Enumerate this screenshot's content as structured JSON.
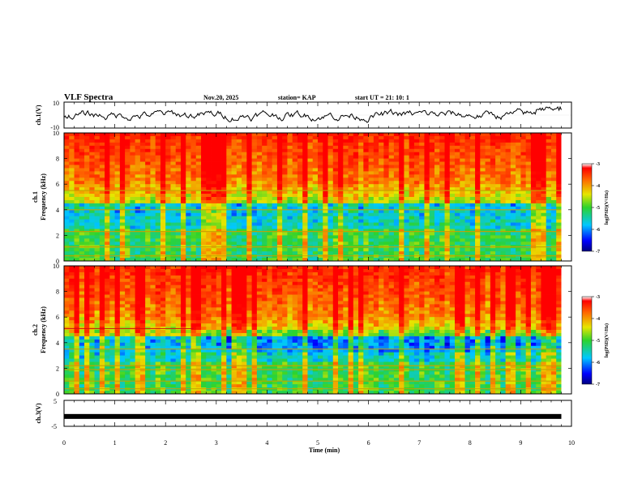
{
  "header": {
    "title": "VLF Spectra",
    "date": "Nov.20, 2025",
    "station": "station= KAP",
    "start_time": "start  UT  =   21: 10: 1"
  },
  "chart_data": [
    {
      "type": "line",
      "panel": "ch1-waveform",
      "ylabel": "ch.1(V)",
      "ylim": [
        -10,
        10
      ],
      "yticks": [
        "10",
        "-10"
      ],
      "x_range_min": [
        0,
        9.8
      ],
      "color": "#000000"
    },
    {
      "type": "heatmap",
      "panel": "ch1-spectrogram",
      "ylabel": "ch.1\nFrequency  (kHz)",
      "ylim_khz": [
        0,
        10
      ],
      "yticks": [
        "0",
        "2",
        "4",
        "6",
        "8",
        "10"
      ],
      "x_range_min": [
        0,
        9.8
      ],
      "colorbar": {
        "label": "log(PSD)(V²/Hz)",
        "range": [
          -7,
          -3
        ],
        "ticks": [
          "-3",
          "-4",
          "-5",
          "-6",
          "-7"
        ]
      },
      "bands_khz": [
        0.4,
        1.1,
        2.3,
        4.0,
        5.5
      ]
    },
    {
      "type": "heatmap",
      "panel": "ch2-spectrogram",
      "ylabel": "ch.2\nFrequency  (kHz)",
      "ylim_khz": [
        0,
        10
      ],
      "yticks": [
        "0",
        "2",
        "4",
        "6",
        "8",
        "10"
      ],
      "x_range_min": [
        0,
        9.8
      ],
      "colorbar": {
        "label": "log(PSD)(V²/Hz)",
        "range": [
          -7,
          -3
        ],
        "ticks": [
          "-3",
          "-4",
          "-5",
          "-6",
          "-7"
        ]
      },
      "bands_khz": [
        0.4,
        1.0,
        1.9,
        2.2,
        3.5,
        5.1
      ],
      "band_5_1khz_until_min": 2.55
    },
    {
      "type": "line",
      "panel": "ch3-waveform",
      "ylabel": "ch.3(V)",
      "ylim": [
        -5,
        5
      ],
      "yticks": [
        "5",
        "-5"
      ],
      "x_range_min": [
        0,
        9.8
      ],
      "constant_value": -1.2,
      "color": "#000000"
    }
  ],
  "xaxis": {
    "label": "Time  (min)",
    "range": [
      0,
      10
    ],
    "ticks": [
      "0",
      "1",
      "2",
      "3",
      "4",
      "5",
      "6",
      "7",
      "8",
      "9",
      "10"
    ]
  }
}
